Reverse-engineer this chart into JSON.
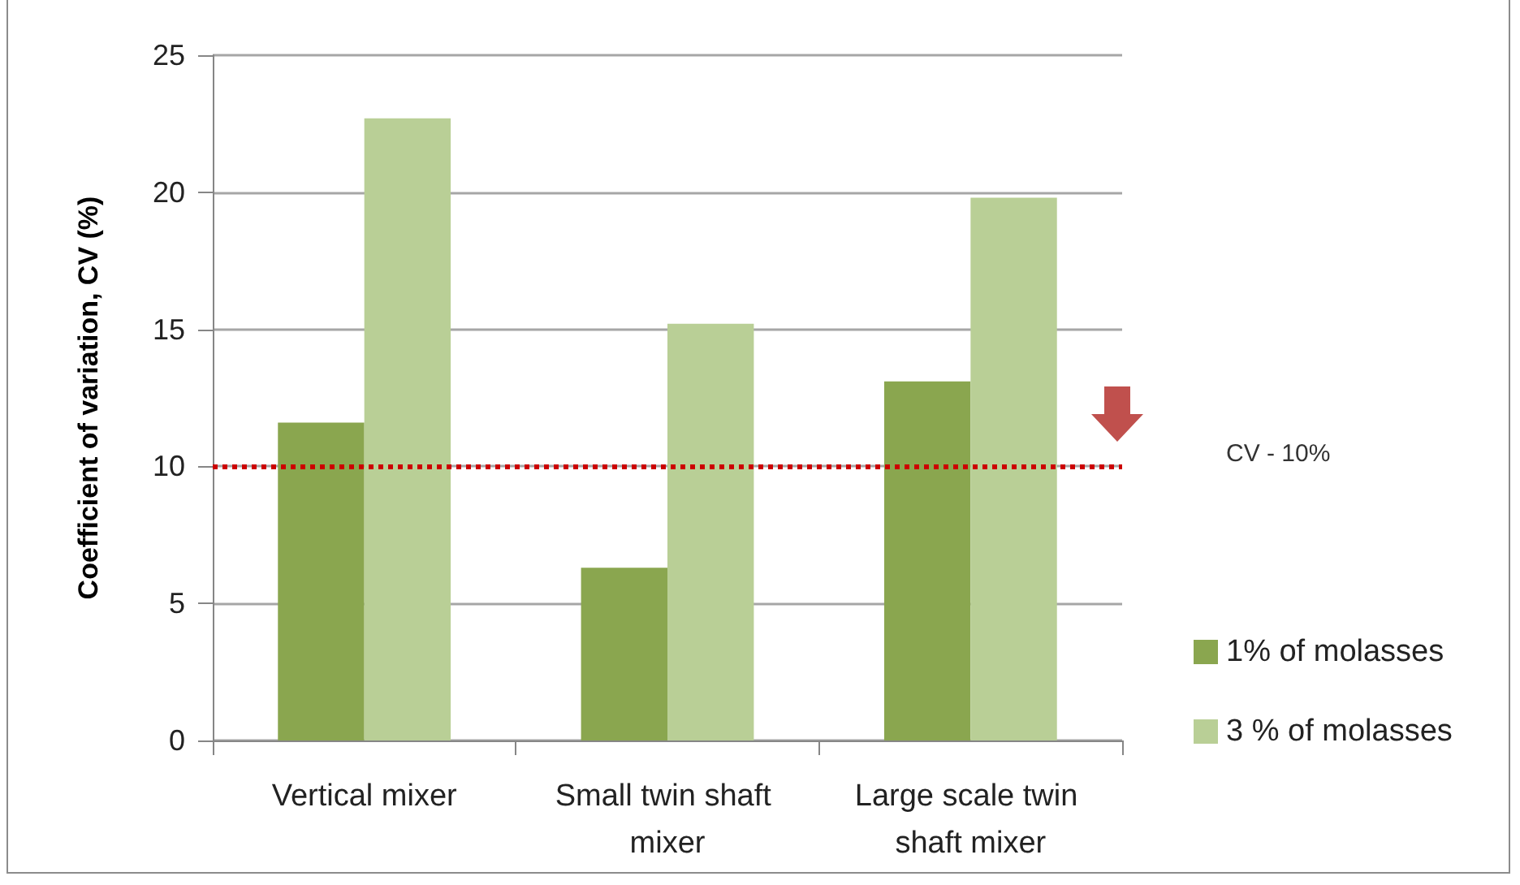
{
  "chart_data": {
    "type": "bar",
    "ylabel": "Coefficient of variation, CV (%)",
    "categories": [
      "Vertical mixer",
      "Small twin shaft mixer",
      "Large scale twin shaft mixer"
    ],
    "series": [
      {
        "name": "1% of molasses",
        "color": "#8aa64f",
        "values": [
          11.6,
          6.3,
          13.1
        ]
      },
      {
        "name": "3 % of molasses",
        "color": "#b9cf96",
        "values": [
          22.7,
          15.2,
          19.8
        ]
      }
    ],
    "ylim": [
      0,
      25
    ],
    "yticks": [
      0,
      5,
      10,
      15,
      20,
      25
    ],
    "grid": "y",
    "legend": "right",
    "ref_lines": [
      {
        "axis": "y",
        "value": 10,
        "color": "#cc0000",
        "line_style": "dotted"
      }
    ],
    "annotations": [
      "CV - 10%"
    ]
  }
}
